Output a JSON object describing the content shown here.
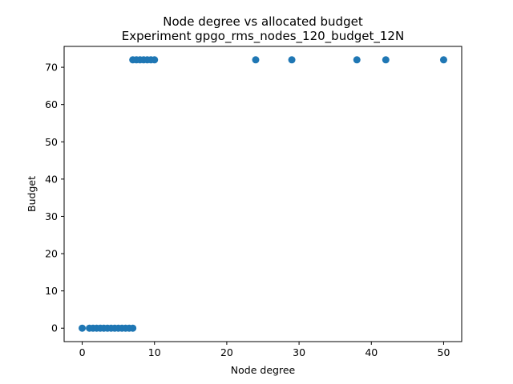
{
  "chart_data": {
    "type": "scatter",
    "title": "Node degree vs allocated budget",
    "subtitle": "Experiment gpgo_rms_nodes_120_budget_12N",
    "xlabel": "Node degree",
    "ylabel": "Budget",
    "xlim": [
      -2.5,
      52.5
    ],
    "ylim": [
      -3.6,
      75.6
    ],
    "xticks": [
      0,
      10,
      20,
      30,
      40,
      50
    ],
    "yticks": [
      0,
      10,
      20,
      30,
      40,
      50,
      60,
      70
    ],
    "grid": false,
    "marker_color": "#1f77b4",
    "series": [
      {
        "x": [
          0,
          1,
          1.5,
          2,
          2.5,
          3,
          3.5,
          4,
          4.5,
          5,
          5.5,
          6,
          6.5,
          7,
          7,
          7.5,
          8,
          8.5,
          9,
          9.5,
          10,
          24,
          29,
          38,
          42,
          50
        ],
        "y": [
          0,
          0,
          0,
          0,
          0,
          0,
          0,
          0,
          0,
          0,
          0,
          0,
          0,
          0,
          72,
          72,
          72,
          72,
          72,
          72,
          72,
          72,
          72,
          72,
          72,
          72
        ]
      }
    ]
  }
}
